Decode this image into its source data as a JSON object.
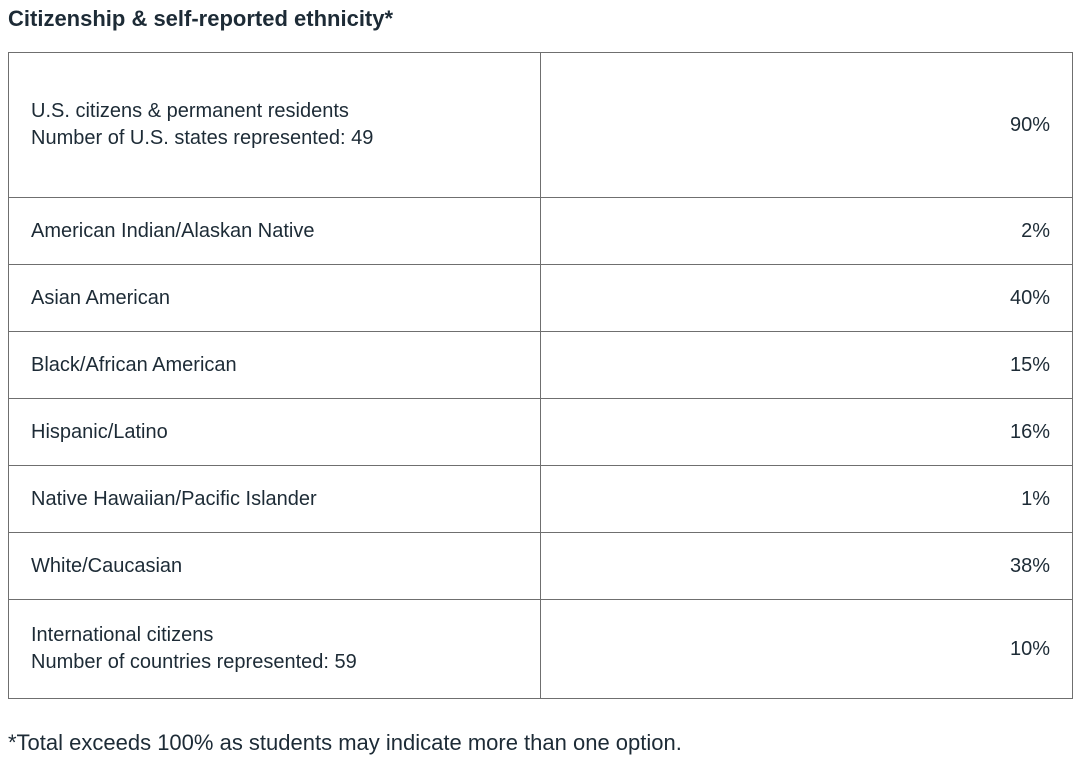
{
  "heading": "Citizenship & self-reported ethnicity*",
  "rows": [
    {
      "label": "U.S. citizens & permanent residents",
      "sublabel": "Number of U.S. states represented: 49",
      "value": "90%"
    },
    {
      "label": "American Indian/Alaskan Native",
      "value": "2%"
    },
    {
      "label": "Asian American",
      "value": "40%"
    },
    {
      "label": "Black/African American",
      "value": "15%"
    },
    {
      "label": "Hispanic/Latino",
      "value": "16%"
    },
    {
      "label": "Native Hawaiian/Pacific Islander",
      "value": "1%"
    },
    {
      "label": "White/Caucasian",
      "value": "38%"
    },
    {
      "label": "International citizens",
      "sublabel": "Number of countries represented: 59",
      "value": "10%"
    }
  ],
  "footnote": "*Total exceeds 100% as students may indicate more than one option."
}
